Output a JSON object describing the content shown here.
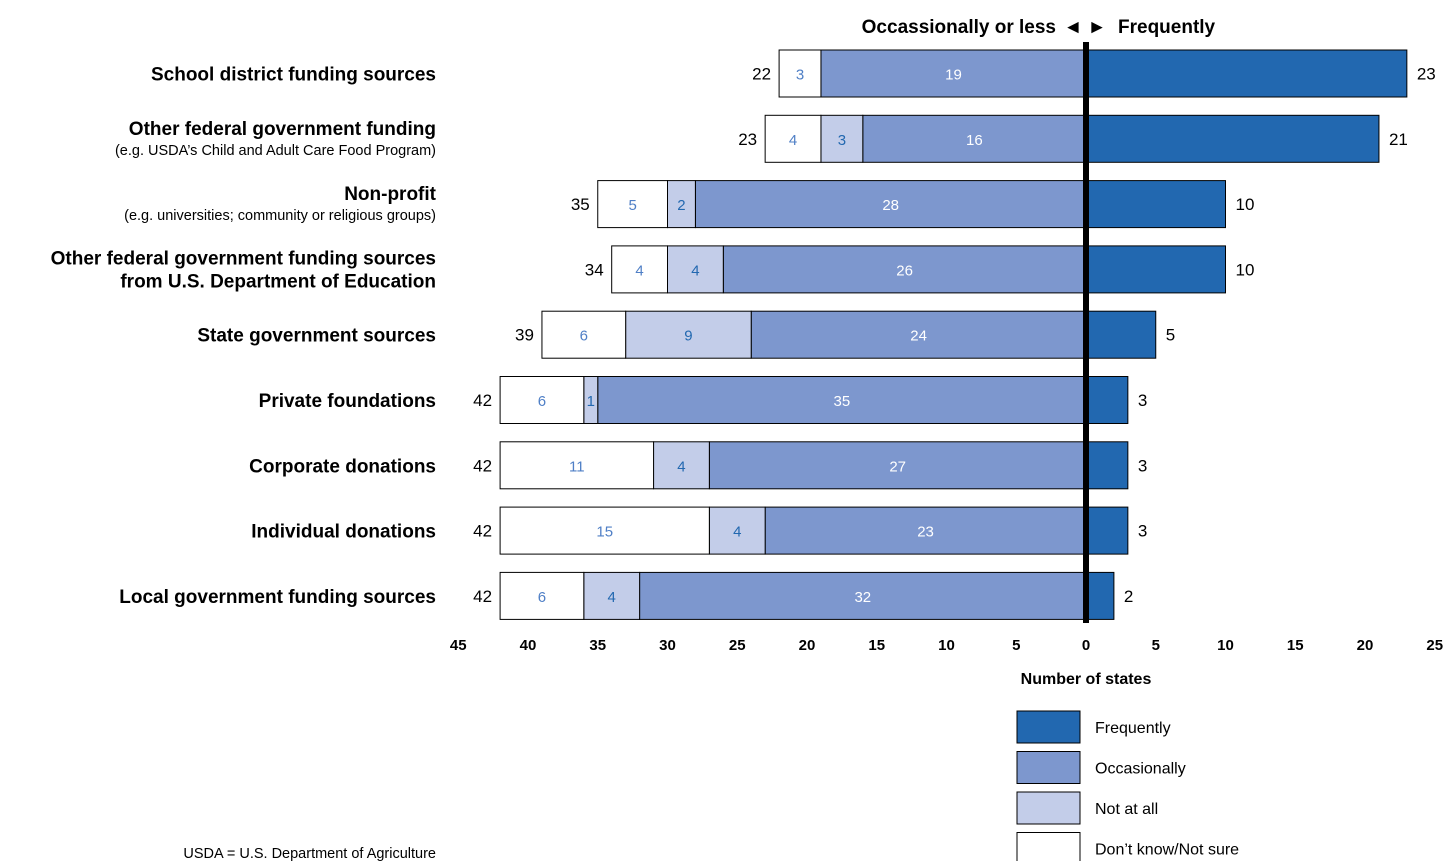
{
  "chart_data": {
    "type": "bar",
    "orientation": "horizontal-diverging",
    "header_left": "Occassionally or less",
    "header_right": "Frequently",
    "xlabel": "Number of states",
    "xlim": [
      -45,
      25
    ],
    "x_ticks": [
      {
        "pos": -45,
        "label": "45"
      },
      {
        "pos": -40,
        "label": "40"
      },
      {
        "pos": -35,
        "label": "35"
      },
      {
        "pos": -30,
        "label": "30"
      },
      {
        "pos": -25,
        "label": "25"
      },
      {
        "pos": -20,
        "label": "20"
      },
      {
        "pos": -15,
        "label": "15"
      },
      {
        "pos": -10,
        "label": "10"
      },
      {
        "pos": -5,
        "label": "5"
      },
      {
        "pos": 0,
        "label": "0"
      },
      {
        "pos": 5,
        "label": "5"
      },
      {
        "pos": 10,
        "label": "10"
      },
      {
        "pos": 15,
        "label": "15"
      },
      {
        "pos": 20,
        "label": "20"
      },
      {
        "pos": 25,
        "label": "25"
      }
    ],
    "categories": [
      {
        "label": "School district funding sources",
        "sublabel": ""
      },
      {
        "label": "Other federal government funding",
        "sublabel": "(e.g. USDA’s Child and Adult Care Food Program)"
      },
      {
        "label": "Non-profit",
        "sublabel": "(e.g. universities; community or religious groups)"
      },
      {
        "label": "Other federal government funding sources",
        "label2": "from U.S. Department of Education",
        "sublabel": ""
      },
      {
        "label": "State government sources",
        "sublabel": ""
      },
      {
        "label": "Private foundations",
        "sublabel": ""
      },
      {
        "label": "Corporate donations",
        "sublabel": ""
      },
      {
        "label": "Individual donations",
        "sublabel": ""
      },
      {
        "label": "Local government funding sources",
        "sublabel": ""
      }
    ],
    "series": [
      {
        "name": "Frequently",
        "color": "#2268b0",
        "values": [
          23,
          21,
          10,
          10,
          5,
          3,
          3,
          3,
          2
        ]
      },
      {
        "name": "Occasionally",
        "color": "#7d97ce",
        "values": [
          19,
          16,
          28,
          26,
          24,
          35,
          27,
          23,
          32
        ]
      },
      {
        "name": "Not at all",
        "color": "#c3cde9",
        "values": [
          0,
          3,
          2,
          4,
          9,
          1,
          4,
          4,
          4
        ]
      },
      {
        "name": "Don’t know/Not sure",
        "color": "#ffffff",
        "values": [
          3,
          4,
          5,
          4,
          6,
          6,
          11,
          15,
          6
        ]
      }
    ],
    "left_totals": [
      22,
      23,
      35,
      34,
      39,
      42,
      42,
      42,
      42
    ],
    "right_totals": [
      23,
      21,
      10,
      10,
      5,
      3,
      3,
      3,
      2
    ],
    "legend_position": "bottom-right"
  },
  "footnote": "USDA = U.S. Department of Agriculture"
}
